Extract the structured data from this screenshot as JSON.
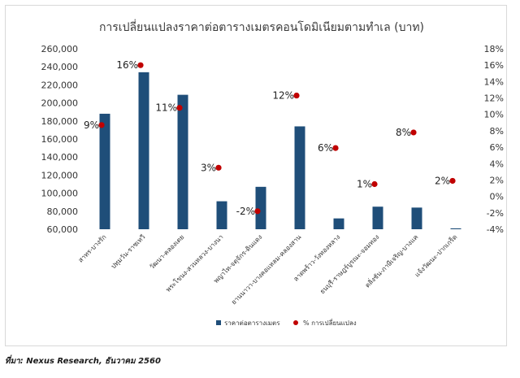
{
  "chart_data": {
    "type": "bar",
    "title": "การเปลี่ยนแปลงราคาต่อตารางเมตรคอนโดมิเนียมตามทำเล  (บาท)",
    "categories": [
      "สาทร-บางรัก",
      "ปทุมวัน-ราชเทวี",
      "วัฒนา-คลองเตย",
      "พระโขนง-สวนหลวง-บางนา",
      "พญาไท-จตุจักร-ดินแดง",
      "ยานนาวา-บางคอแหลม-คลองสาน",
      "ลาดพร้าว-วังทองหลาง",
      "ธนบุรี-ราษฎร์บูรณะ-จอมทอง",
      "ตลิ่งชัน-ภาษีเจริญ-บางแค",
      "แจ้งวัฒนะ-ปากเกร็ด"
    ],
    "series": [
      {
        "name": "ราคาต่อตารางเมตร",
        "type": "bar",
        "axis": "left",
        "color": "#1f4e79",
        "values": [
          188000,
          234000,
          209000,
          91000,
          107000,
          174000,
          72000,
          85000,
          84000,
          61000
        ]
      },
      {
        "name": "% การเปลี่ยนแปลง",
        "type": "scatter",
        "axis": "right",
        "color": "#c00000",
        "values": [
          8.7,
          16.0,
          10.8,
          3.5,
          -1.8,
          12.3,
          5.9,
          1.5,
          7.8,
          1.9
        ],
        "labels": [
          "9%",
          "16%",
          "11%",
          "3%",
          "-2%",
          "12%",
          "6%",
          "1%",
          "8%",
          "2%"
        ]
      }
    ],
    "y_left": {
      "range": [
        60000,
        260000
      ],
      "ticks": [
        60000,
        80000,
        100000,
        120000,
        140000,
        160000,
        180000,
        200000,
        220000,
        240000,
        260000
      ],
      "tick_labels": [
        "60,000",
        "80,000",
        "100,000",
        "120,000",
        "140,000",
        "160,000",
        "180,000",
        "200,000",
        "220,000",
        "240,000",
        "260,000"
      ]
    },
    "y_right": {
      "range": [
        -4,
        18
      ],
      "ticks": [
        -4,
        -2,
        0,
        2,
        4,
        6,
        8,
        10,
        12,
        14,
        16,
        18
      ],
      "tick_labels": [
        "-4%",
        "-2%",
        "0%",
        "2%",
        "4%",
        "6%",
        "8%",
        "10%",
        "12%",
        "14%",
        "16%",
        "18%"
      ]
    },
    "grid": false,
    "legend_position": "bottom"
  },
  "source": "ที่มา: Nexus Research, ธันวาคม 2560"
}
